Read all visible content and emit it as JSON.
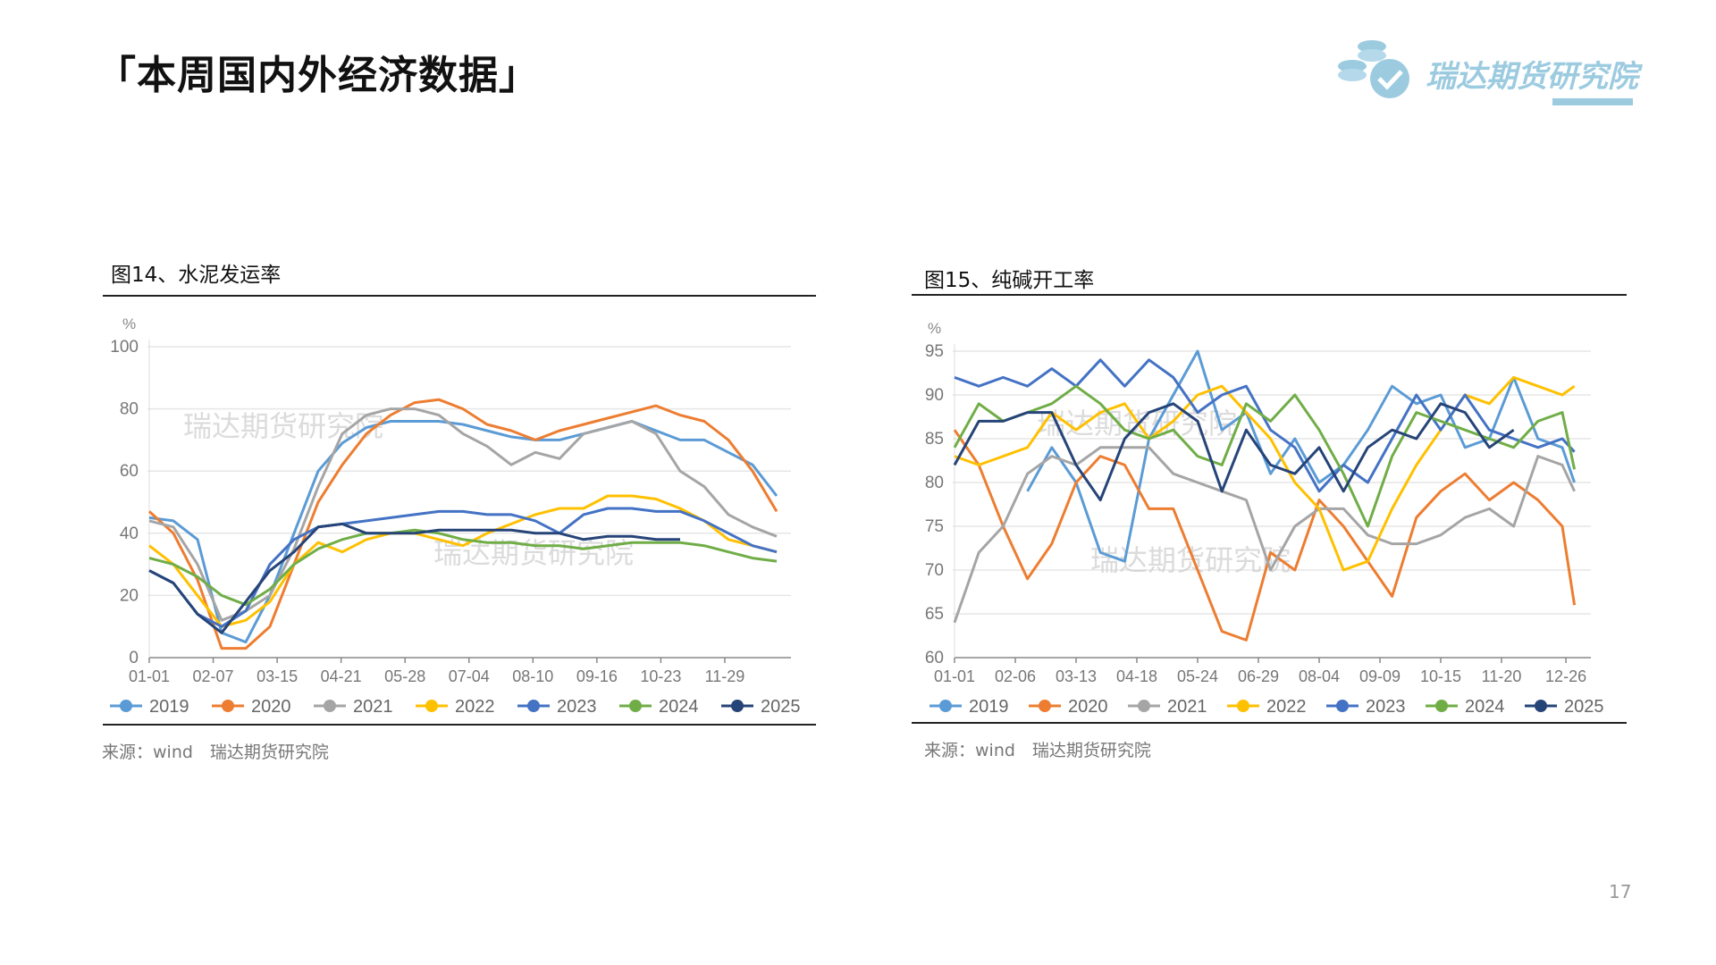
{
  "page": {
    "title": "「本周国内外经济数据」",
    "page_number": "17"
  },
  "logo": {
    "text": "瑞达期货研究院",
    "color": "#9ccbe0"
  },
  "charts": [
    {
      "figure_title": "图14、水泥发运率",
      "source": "来源：wind　瑞达期货研究院"
    },
    {
      "figure_title": "图15、纯碱开工率",
      "source": "来源：wind　瑞达期货研究院"
    }
  ],
  "chart_data": [
    {
      "type": "line",
      "title": "图14、水泥发运率",
      "ylabel": "%",
      "ylim": [
        0,
        100
      ],
      "yticks": [
        0,
        20,
        40,
        60,
        80,
        100
      ],
      "xticks": [
        "01-01",
        "02-07",
        "03-15",
        "04-21",
        "05-28",
        "07-04",
        "08-10",
        "09-16",
        "10-23",
        "11-29"
      ],
      "x_unit": "week of year",
      "x": [
        0,
        2,
        4,
        6,
        8,
        10,
        12,
        14,
        16,
        18,
        20,
        22,
        24,
        26,
        28,
        30,
        32,
        34,
        36,
        38,
        40,
        42,
        44,
        46,
        48,
        50,
        52
      ],
      "grid": true,
      "legend": "bottom",
      "watermark": "瑞达期货研究院",
      "series": [
        {
          "name": "2019",
          "color": "#5b9bd5",
          "values": [
            45,
            44,
            38,
            8,
            5,
            20,
            40,
            60,
            69,
            74,
            76,
            76,
            76,
            75,
            73,
            71,
            70,
            70,
            72,
            74,
            76,
            73,
            70,
            70,
            66,
            62,
            52
          ]
        },
        {
          "name": "2020",
          "color": "#ed7d31",
          "values": [
            47,
            40,
            25,
            3,
            3,
            10,
            30,
            50,
            62,
            72,
            78,
            82,
            83,
            80,
            75,
            73,
            70,
            73,
            75,
            77,
            79,
            81,
            78,
            76,
            70,
            60,
            47
          ]
        },
        {
          "name": "2021",
          "color": "#a5a5a5",
          "values": [
            44,
            42,
            30,
            12,
            15,
            20,
            35,
            55,
            72,
            78,
            80,
            80,
            78,
            72,
            68,
            62,
            66,
            64,
            72,
            74,
            76,
            72,
            60,
            55,
            46,
            42,
            39
          ]
        },
        {
          "name": "2022",
          "color": "#ffc000",
          "values": [
            36,
            30,
            20,
            10,
            12,
            18,
            30,
            37,
            34,
            38,
            40,
            40,
            38,
            36,
            40,
            43,
            46,
            48,
            48,
            52,
            52,
            51,
            48,
            44,
            38,
            36,
            34
          ]
        },
        {
          "name": "2023",
          "color": "#4472c4",
          "values": [
            28,
            24,
            14,
            10,
            15,
            30,
            38,
            42,
            43,
            44,
            45,
            46,
            47,
            47,
            46,
            46,
            44,
            40,
            46,
            48,
            48,
            47,
            47,
            44,
            40,
            36,
            34
          ]
        },
        {
          "name": "2024",
          "color": "#70ad47",
          "values": [
            32,
            30,
            26,
            20,
            17,
            22,
            30,
            35,
            38,
            40,
            40,
            41,
            40,
            38,
            37,
            37,
            36,
            36,
            35,
            36,
            37,
            37,
            37,
            36,
            34,
            32,
            31
          ]
        },
        {
          "name": "2025",
          "color": "#264478",
          "values": [
            28,
            24,
            14,
            8,
            18,
            28,
            34,
            42,
            43,
            40,
            40,
            40,
            41,
            41,
            41,
            41,
            40,
            40,
            38,
            39,
            39,
            38,
            38,
            null,
            null,
            null,
            null
          ]
        }
      ]
    },
    {
      "type": "line",
      "title": "图15、纯碱开工率",
      "ylabel": "%",
      "ylim": [
        60,
        95
      ],
      "yticks": [
        60,
        65,
        70,
        75,
        80,
        85,
        90,
        95
      ],
      "xticks": [
        "01-01",
        "02-06",
        "03-13",
        "04-18",
        "05-24",
        "06-29",
        "08-04",
        "09-09",
        "10-15",
        "11-20",
        "12-26"
      ],
      "x_unit": "week of year",
      "x": [
        0,
        2,
        4,
        6,
        8,
        10,
        12,
        14,
        16,
        18,
        20,
        22,
        24,
        26,
        28,
        30,
        32,
        34,
        36,
        38,
        40,
        42,
        44,
        46,
        48,
        50,
        51
      ],
      "grid": true,
      "legend": "bottom",
      "watermark": "瑞达期货研究院",
      "series": [
        {
          "name": "2019",
          "color": "#5b9bd5",
          "values": [
            null,
            null,
            null,
            79,
            84,
            80,
            72,
            71,
            85,
            90,
            95,
            86,
            88,
            81,
            85,
            80,
            82,
            86,
            91,
            89,
            90,
            84,
            85,
            92,
            85,
            84,
            80
          ]
        },
        {
          "name": "2020",
          "color": "#ed7d31",
          "values": [
            86,
            82,
            75,
            69,
            73,
            80,
            83,
            82,
            77,
            77,
            70,
            63,
            62,
            72,
            70,
            78,
            75,
            71,
            67,
            76,
            79,
            81,
            78,
            80,
            78,
            75,
            66
          ]
        },
        {
          "name": "2021",
          "color": "#a5a5a5",
          "values": [
            64,
            72,
            75,
            81,
            83,
            82,
            84,
            84,
            84,
            81,
            80,
            79,
            78,
            70,
            75,
            77,
            77,
            74,
            73,
            73,
            74,
            76,
            77,
            75,
            83,
            82,
            79
          ]
        },
        {
          "name": "2022",
          "color": "#ffc000",
          "values": [
            83,
            82,
            83,
            84,
            88,
            86,
            88,
            89,
            85,
            87,
            90,
            91,
            88,
            85,
            80,
            77,
            70,
            71,
            77,
            82,
            86,
            90,
            89,
            92,
            91,
            90,
            91
          ]
        },
        {
          "name": "2023",
          "color": "#4472c4",
          "values": [
            92,
            91,
            92,
            91,
            93,
            91,
            94,
            91,
            94,
            92,
            88,
            90,
            91,
            86,
            84,
            79,
            82,
            80,
            85,
            90,
            86,
            90,
            86,
            85,
            84,
            85,
            83.5
          ]
        },
        {
          "name": "2024",
          "color": "#70ad47",
          "values": [
            84,
            89,
            87,
            88,
            89,
            91,
            89,
            86,
            85,
            86,
            83,
            82,
            89,
            87,
            90,
            86,
            81,
            75,
            83,
            88,
            87,
            86,
            85,
            84,
            87,
            88,
            81.5
          ]
        },
        {
          "name": "2025",
          "color": "#264478",
          "values": [
            82,
            87,
            87,
            88,
            88,
            82,
            78,
            85,
            88,
            89,
            87,
            79,
            86,
            82,
            81,
            84,
            79,
            84,
            86,
            85,
            89,
            88,
            84,
            86,
            null,
            null,
            null
          ]
        }
      ]
    }
  ]
}
